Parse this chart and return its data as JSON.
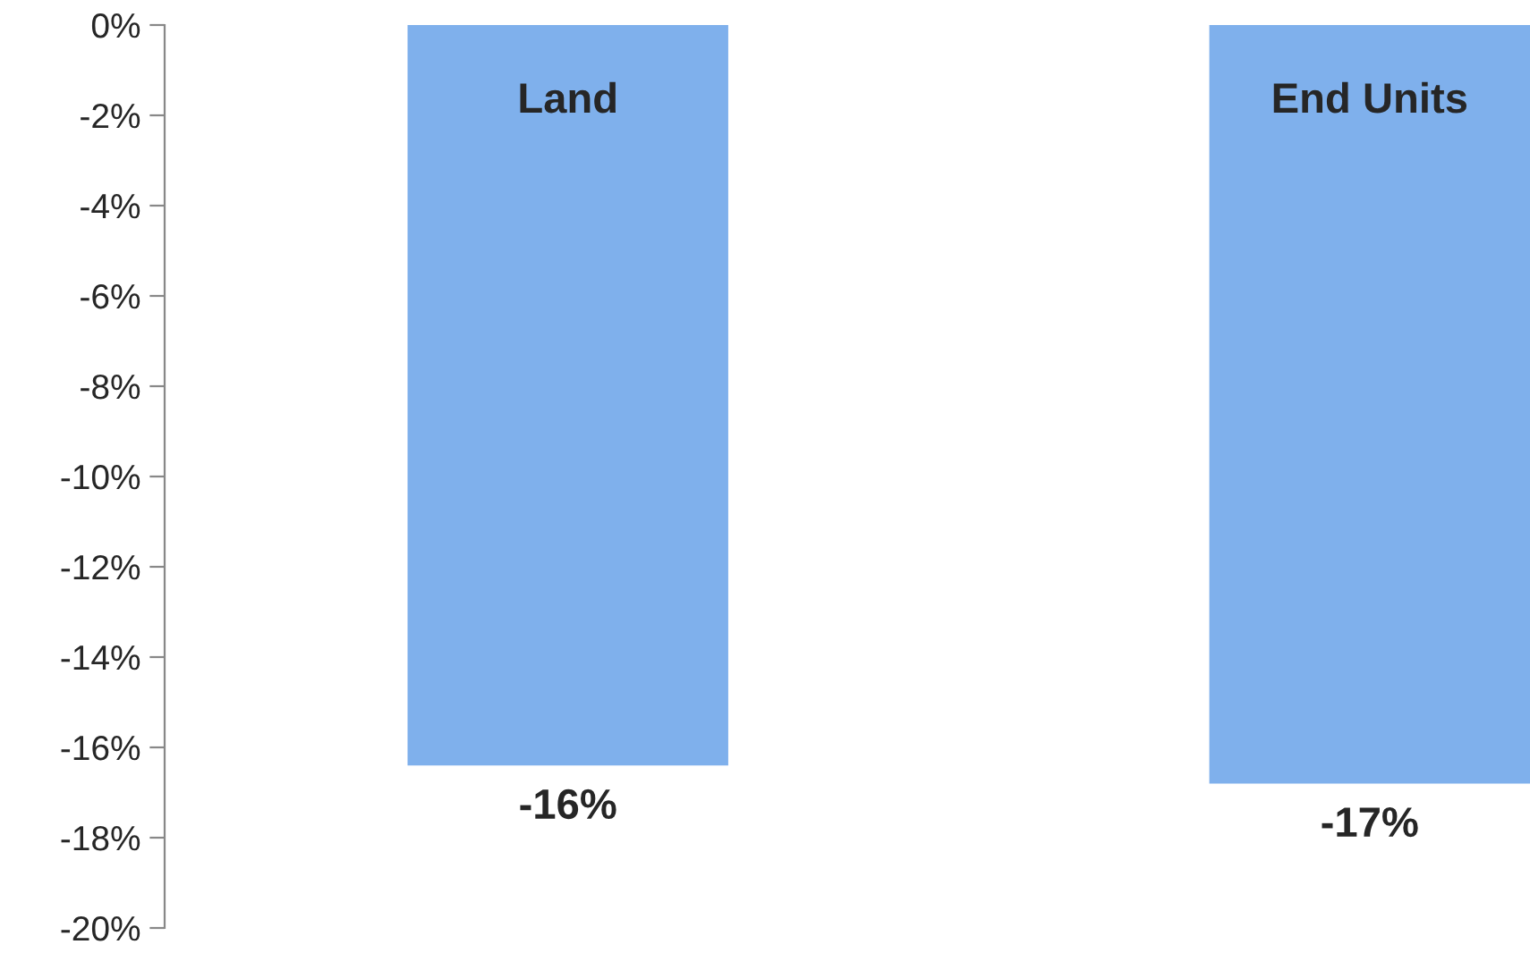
{
  "chart_data": {
    "type": "bar",
    "categories": [
      "Land",
      "End Units"
    ],
    "values": [
      -16.4,
      -16.8
    ],
    "value_labels": [
      "-16%",
      "-17%"
    ],
    "color": "#7fb0ec",
    "ylim": [
      -20,
      0
    ],
    "yticks": [
      {
        "value": 0,
        "label": "0%"
      },
      {
        "value": -2,
        "label": "-2%"
      },
      {
        "value": -4,
        "label": "-4%"
      },
      {
        "value": -6,
        "label": "-6%"
      },
      {
        "value": -8,
        "label": "-8%"
      },
      {
        "value": -10,
        "label": "-10%"
      },
      {
        "value": -12,
        "label": "-12%"
      },
      {
        "value": -14,
        "label": "-14%"
      },
      {
        "value": -16,
        "label": "-16%"
      },
      {
        "value": -18,
        "label": "-18%"
      },
      {
        "value": -20,
        "label": "-20%"
      }
    ],
    "grid": false,
    "legend": false
  }
}
